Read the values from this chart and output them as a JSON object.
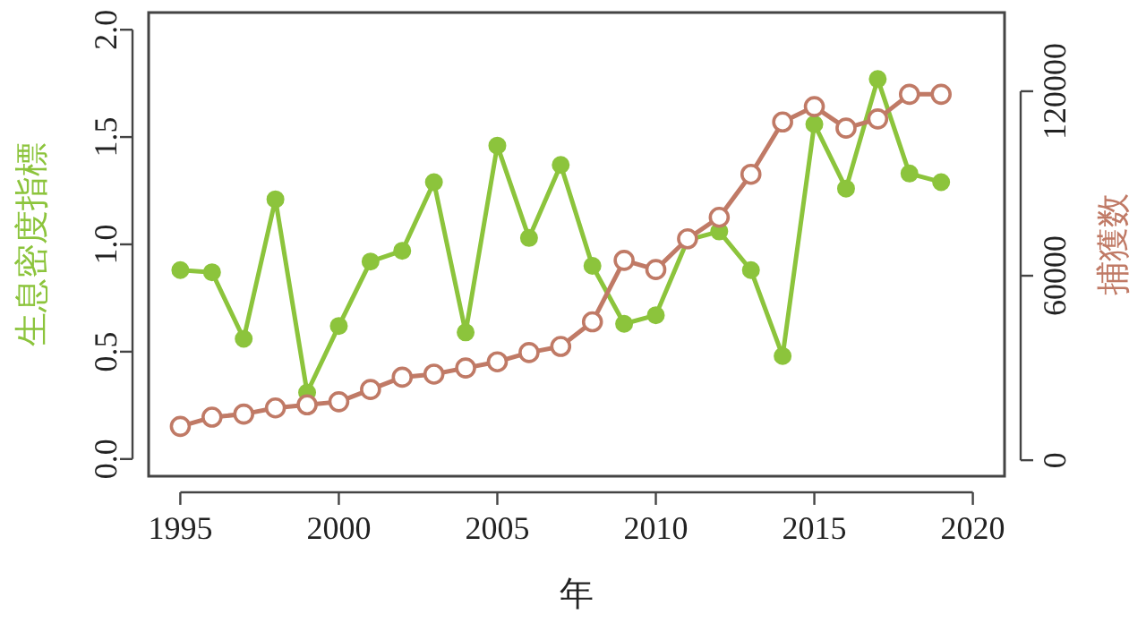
{
  "chart_data": {
    "type": "line",
    "xlabel": "年",
    "ylabel": "生息密度指標",
    "y2label": "捕獲数",
    "x": [
      1995,
      1996,
      1997,
      1998,
      1999,
      2000,
      2001,
      2002,
      2003,
      2004,
      2005,
      2006,
      2007,
      2008,
      2009,
      2010,
      2011,
      2012,
      2013,
      2014,
      2015,
      2016,
      2017,
      2018,
      2019
    ],
    "series": [
      {
        "color": "#8cc43c",
        "values": [
          0.88,
          0.87,
          0.56,
          1.21,
          0.31,
          0.62,
          0.92,
          0.97,
          1.29,
          0.59,
          1.46,
          1.03,
          1.37,
          0.9,
          0.63,
          0.67,
          1.02,
          1.06,
          0.88,
          0.48,
          1.56,
          1.26,
          1.77,
          1.33,
          1.29
        ]
      },
      {
        "color": "#c07a66",
        "axis": "y2",
        "values": [
          11000,
          14000,
          15000,
          17000,
          18000,
          19000,
          23000,
          27000,
          28000,
          30000,
          32000,
          35000,
          37000,
          45000,
          65000,
          62000,
          72000,
          79000,
          93000,
          110000,
          115000,
          108000,
          111000,
          119000,
          119000
        ]
      }
    ],
    "xlim": [
      1994,
      2021
    ],
    "xticks": [
      1995,
      2000,
      2005,
      2010,
      2015,
      2020
    ],
    "ylim": [
      -0.08,
      2.08
    ],
    "yticks": [
      {
        "value": 0,
        "label": "0.0"
      },
      {
        "value": 0.5,
        "label": "0.5"
      },
      {
        "value": 1,
        "label": "1.0"
      },
      {
        "value": 1.5,
        "label": "1.5"
      },
      {
        "value": 2,
        "label": "2.0"
      }
    ],
    "y2lim": [
      -5200,
      145600
    ],
    "y2ticks": [
      0,
      60000,
      120000
    ],
    "marker": "circle"
  }
}
